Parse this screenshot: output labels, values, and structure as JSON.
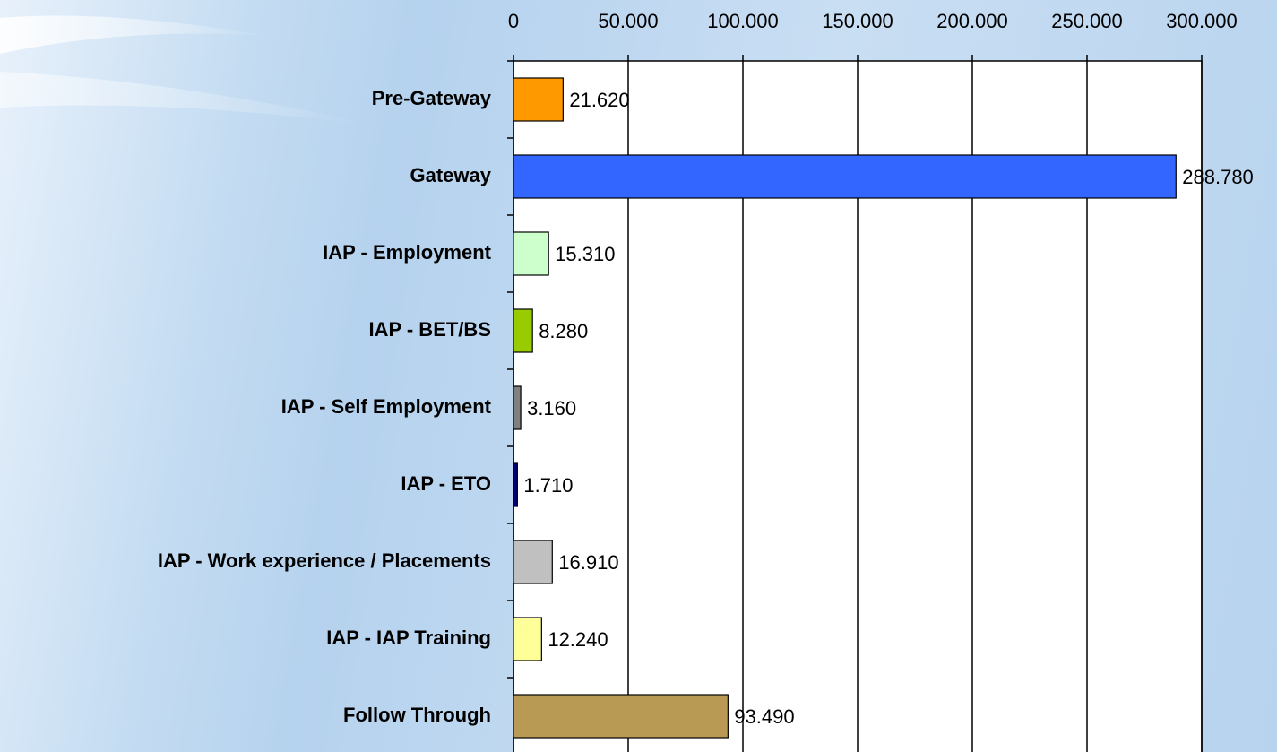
{
  "chart_data": {
    "type": "hbar",
    "categories": [
      "Pre-Gateway",
      "Gateway",
      "IAP - Employment",
      "IAP - BET/BS",
      "IAP - Self Employment",
      "IAP - ETO",
      "IAP - Work experience / Placements",
      "IAP - IAP Training",
      "Follow Through"
    ],
    "values": [
      21620,
      288780,
      15310,
      8280,
      3160,
      1710,
      16910,
      12240,
      93490
    ],
    "value_labels": [
      "21.620",
      "288.780",
      "15.310",
      "8.280",
      "3.160",
      "1.710",
      "16.910",
      "12.240",
      "93.490"
    ],
    "colors": [
      "#ff9900",
      "#3366ff",
      "#ccffcc",
      "#99cc00",
      "#808080",
      "#000080",
      "#c0c0c0",
      "#ffff99",
      "#b89a55"
    ],
    "xlim": [
      0,
      300000
    ],
    "xticks": [
      0,
      {
        "value": 50000,
        "label": "50.000"
      },
      {
        "value": 100000,
        "label": "100.000"
      },
      {
        "value": 150000,
        "label": "150.000"
      },
      {
        "value": 200000,
        "label": "200.000"
      },
      {
        "value": 250000,
        "label": "250.000"
      },
      {
        "value": 300000,
        "label": "300.000"
      }
    ],
    "grid": true
  }
}
